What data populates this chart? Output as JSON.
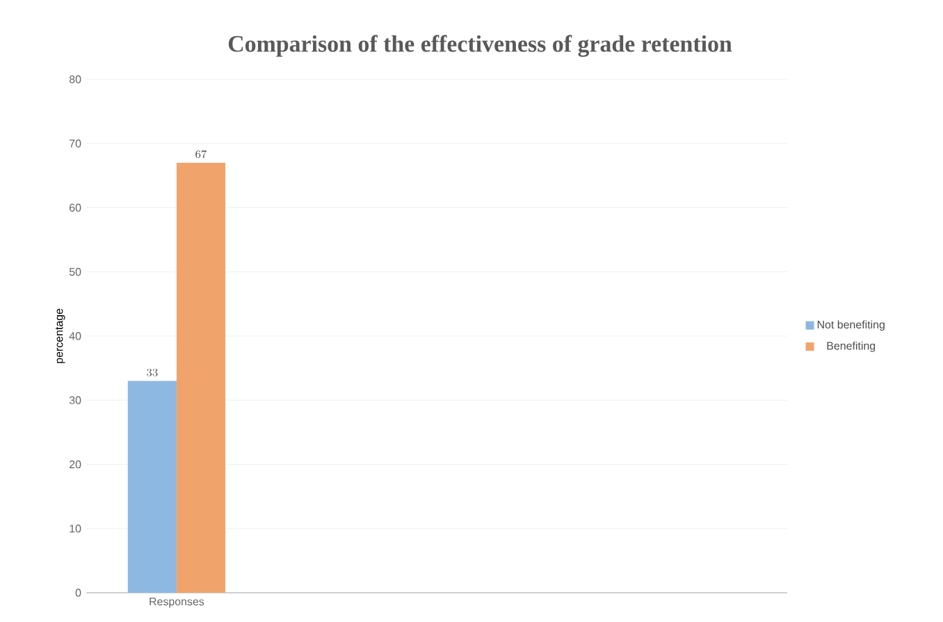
{
  "chart_data": {
    "type": "bar",
    "title": "Comparison of the effectiveness of grade retention",
    "ylabel": "percentage",
    "categories": [
      "Responses"
    ],
    "series": [
      {
        "name": "Not benefiting",
        "color": "#8db8e2",
        "values": [
          33
        ]
      },
      {
        "name": "Benefiting",
        "color": "#f0a46c",
        "values": [
          67
        ]
      }
    ],
    "ylim": [
      0,
      80
    ],
    "yticks": [
      0,
      10,
      20,
      30,
      40,
      50,
      60,
      70,
      80
    ],
    "grid": "y",
    "legend": "right",
    "data_labels": true
  }
}
